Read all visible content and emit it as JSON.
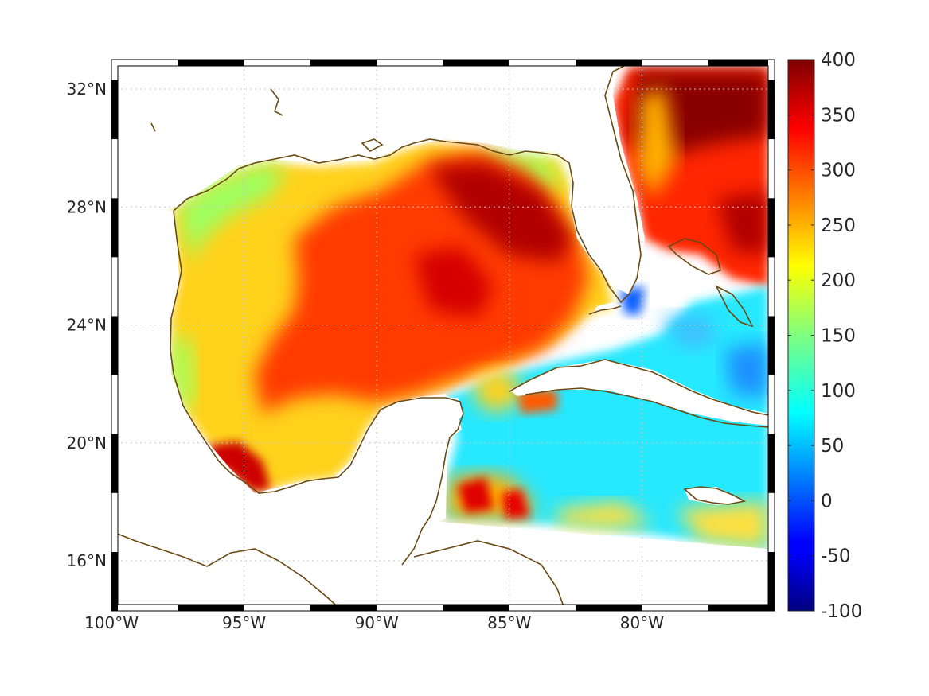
{
  "map": {
    "region": "Gulf of Mexico and Caribbean",
    "lon_range": [
      -100,
      -75
    ],
    "lat_range": [
      14.3,
      33
    ],
    "lon_ticks": [
      {
        "value": -100,
        "label": "100°W"
      },
      {
        "value": -95,
        "label": "95°W"
      },
      {
        "value": -90,
        "label": "90°W"
      },
      {
        "value": -85,
        "label": "85°W"
      },
      {
        "value": -80,
        "label": "80°W"
      }
    ],
    "lat_ticks": [
      {
        "value": 32,
        "label": "32°N"
      },
      {
        "value": 28,
        "label": "28°N"
      },
      {
        "value": 24,
        "label": "24°N"
      },
      {
        "value": 20,
        "label": "20°N"
      },
      {
        "value": 16,
        "label": "16°N"
      }
    ],
    "grid": true,
    "coastline_color": "#6b4a12",
    "colormap": "jet"
  },
  "colorbar": {
    "min": -100,
    "max": 400,
    "ticks": [
      "400",
      "350",
      "300",
      "250",
      "200",
      "150",
      "100",
      "50",
      "0",
      "-50",
      "-100"
    ]
  }
}
